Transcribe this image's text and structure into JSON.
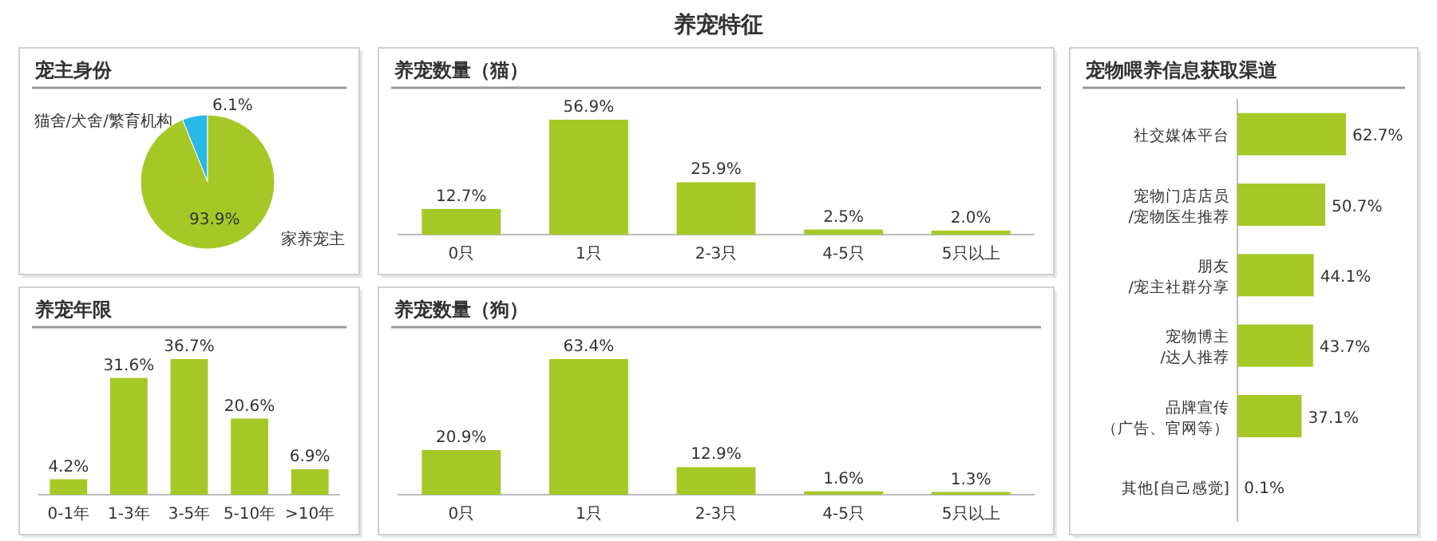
{
  "chart_data": [
    {
      "type": "other",
      "title": "养宠特征"
    },
    {
      "type": "pie",
      "title": "宠主身份",
      "categories": [
        "猫舍/犬舍/繁育机构",
        "家养宠主"
      ],
      "values": [
        6.1,
        93.9
      ],
      "value_labels": [
        "6.1%",
        "93.9%"
      ],
      "colors": [
        "#29b9e6",
        "#a6c827"
      ]
    },
    {
      "type": "bar",
      "title": "养宠数量（猫）",
      "categories": [
        "0只",
        "1只",
        "2-3只",
        "4-5只",
        "5只以上"
      ],
      "values": [
        12.7,
        56.9,
        25.9,
        2.5,
        2.0
      ],
      "value_labels": [
        "12.7%",
        "56.9%",
        "25.9%",
        "2.5%",
        "2.0%"
      ],
      "color": "#a6c827"
    },
    {
      "type": "bar",
      "title": "宠物喂养信息获取渠道",
      "orientation": "horizontal",
      "categories": [
        "社交媒体平台",
        "宠物门店店员/宠物医生推荐",
        "朋友/宠主社群分享",
        "宠物博主/达人推荐",
        "品牌宣传（广告、官网等）",
        "其他[自己感觉]"
      ],
      "values": [
        62.7,
        50.7,
        44.1,
        43.7,
        37.1,
        0.1
      ],
      "value_labels": [
        "62.7%",
        "50.7%",
        "44.1%",
        "43.7%",
        "37.1%",
        "0.1%"
      ],
      "color": "#a6c827"
    },
    {
      "type": "bar",
      "title": "养宠年限",
      "categories": [
        "0-1年",
        "1-3年",
        "3-5年",
        "5-10年",
        ">10年"
      ],
      "values": [
        4.2,
        31.6,
        36.7,
        20.6,
        6.9
      ],
      "value_labels": [
        "4.2%",
        "31.6%",
        "36.7%",
        "20.6%",
        "6.9%"
      ],
      "color": "#a6c827"
    },
    {
      "type": "bar",
      "title": "养宠数量（狗）",
      "categories": [
        "0只",
        "1只",
        "2-3只",
        "4-5只",
        "5只以上"
      ],
      "values": [
        20.9,
        63.4,
        12.9,
        1.6,
        1.3
      ],
      "value_labels": [
        "20.9%",
        "63.4%",
        "12.9%",
        "1.6%",
        "1.3%"
      ],
      "color": "#a6c827"
    }
  ]
}
